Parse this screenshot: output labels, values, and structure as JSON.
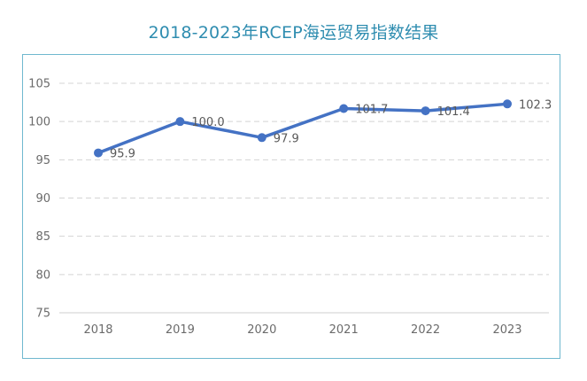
{
  "chart_data": {
    "type": "line",
    "title": "2018-2023年RCEP海运贸易指数结果",
    "categories": [
      "2018",
      "2019",
      "2020",
      "2021",
      "2022",
      "2023"
    ],
    "series": [
      {
        "name": "RCEP海运贸易指数",
        "values": [
          95.9,
          100.0,
          97.9,
          101.7,
          101.4,
          102.3
        ],
        "labels": [
          "95.9",
          "100.0",
          "97.9",
          "101.7",
          "101.4",
          "102.3"
        ]
      }
    ],
    "yticks": [
      "75",
      "80",
      "85",
      "90",
      "95",
      "100",
      "105"
    ],
    "ylim": [
      75,
      105
    ],
    "xlabel": "",
    "ylabel": "",
    "grid": true,
    "colors": {
      "line": "#4472c4",
      "title": "#2f8db0",
      "frame": "#6fb8cf",
      "grid": "#d4d4d4"
    }
  }
}
